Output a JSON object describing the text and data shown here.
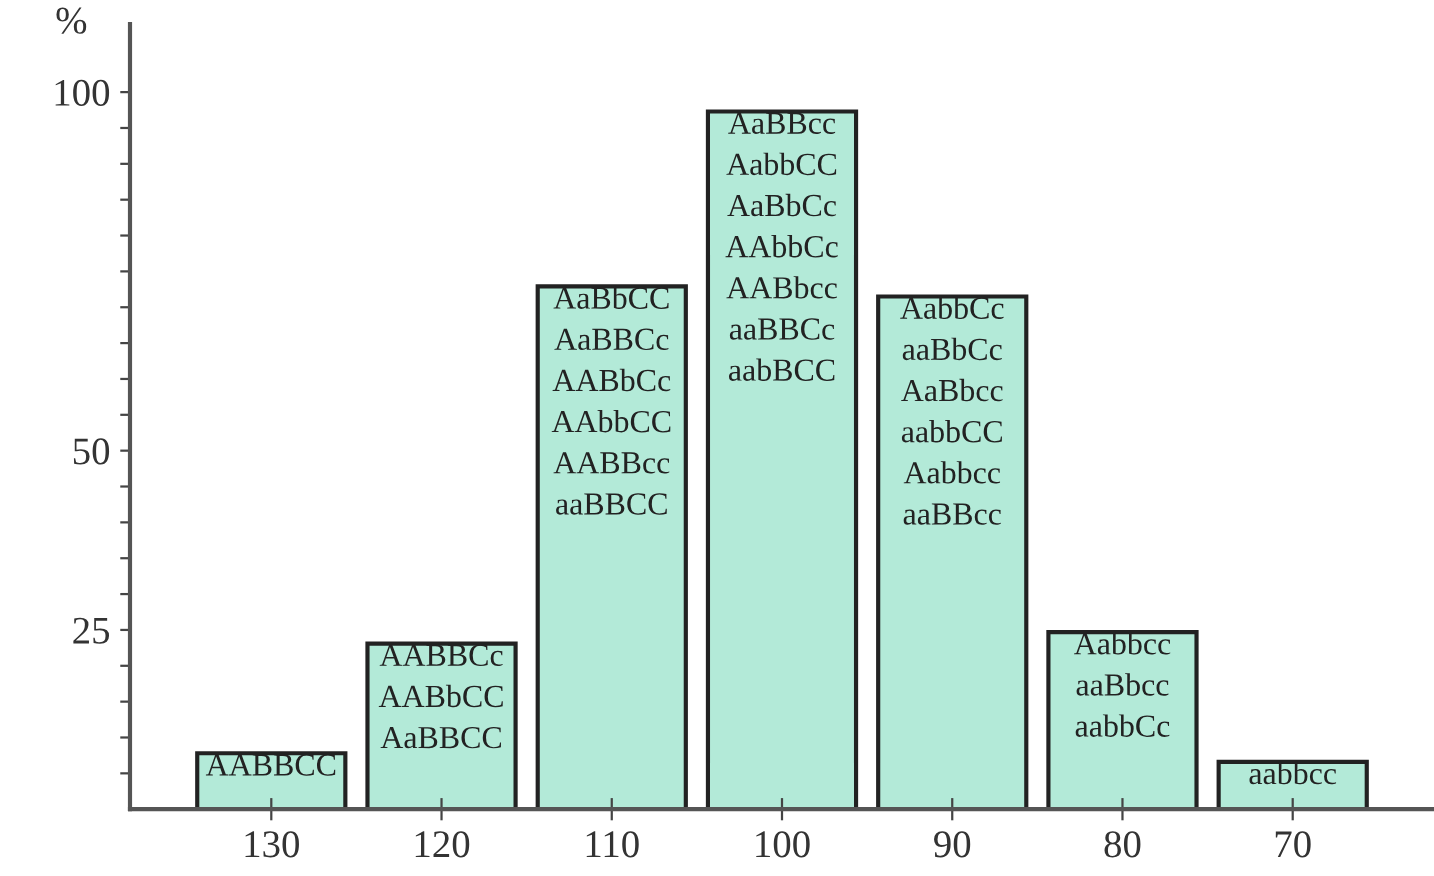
{
  "chart_data": {
    "type": "bar",
    "ylabel": "%",
    "categories": [
      "130",
      "120",
      "110",
      "100",
      "90",
      "80",
      "70"
    ],
    "values": [
      7.8,
      23.1,
      72.9,
      97.3,
      71.5,
      24.7,
      6.6
    ],
    "color": "#b3ead8",
    "ylim": [
      0,
      109.5
    ],
    "yticks": [
      {
        "value": 5,
        "label": null
      },
      {
        "value": 10,
        "label": null
      },
      {
        "value": 15,
        "label": null
      },
      {
        "value": 20,
        "label": null
      },
      25,
      {
        "value": 30,
        "label": null
      },
      {
        "value": 35,
        "label": null
      },
      {
        "value": 40,
        "label": null
      },
      {
        "value": 45,
        "label": null
      },
      50,
      {
        "value": 55,
        "label": null
      },
      {
        "value": 60,
        "label": null
      },
      {
        "value": 65,
        "label": null
      },
      {
        "value": 70,
        "label": null
      },
      {
        "value": 75,
        "label": null
      },
      {
        "value": 80,
        "label": null
      },
      {
        "value": 85,
        "label": null
      },
      {
        "value": 90,
        "label": null
      },
      {
        "value": 95,
        "label": null
      },
      100
    ],
    "grid": false,
    "annotations": [
      {
        "text": "AABBCC",
        "x": "130",
        "y": 7.8
      },
      {
        "text": "AABBCc\nAABbCC\nAaBBCC",
        "x": "120",
        "y": 23.1
      },
      {
        "text": "AaBbCC\nAaBBCc\nAABbCc\nAAbbCC\nAABBcc\naaBBCC",
        "x": "110",
        "y": 72.9
      },
      {
        "text": "AaBBcc\nAabbCC\nAaBbCc\nAAbbCc\nAABbcc\naaBBCc\naabBCC",
        "x": "100",
        "y": 97.3
      },
      {
        "text": "AabbCc\naaBbCc\nAaBbcc\naabbCC\nAabbcc\naaBBcc",
        "x": "90",
        "y": 71.5
      },
      {
        "text": "Aabbcc\naaBbcc\naabbCc",
        "x": "80",
        "y": 24.7
      },
      {
        "text": "aabbcc",
        "x": "70",
        "y": 6.6
      }
    ]
  }
}
